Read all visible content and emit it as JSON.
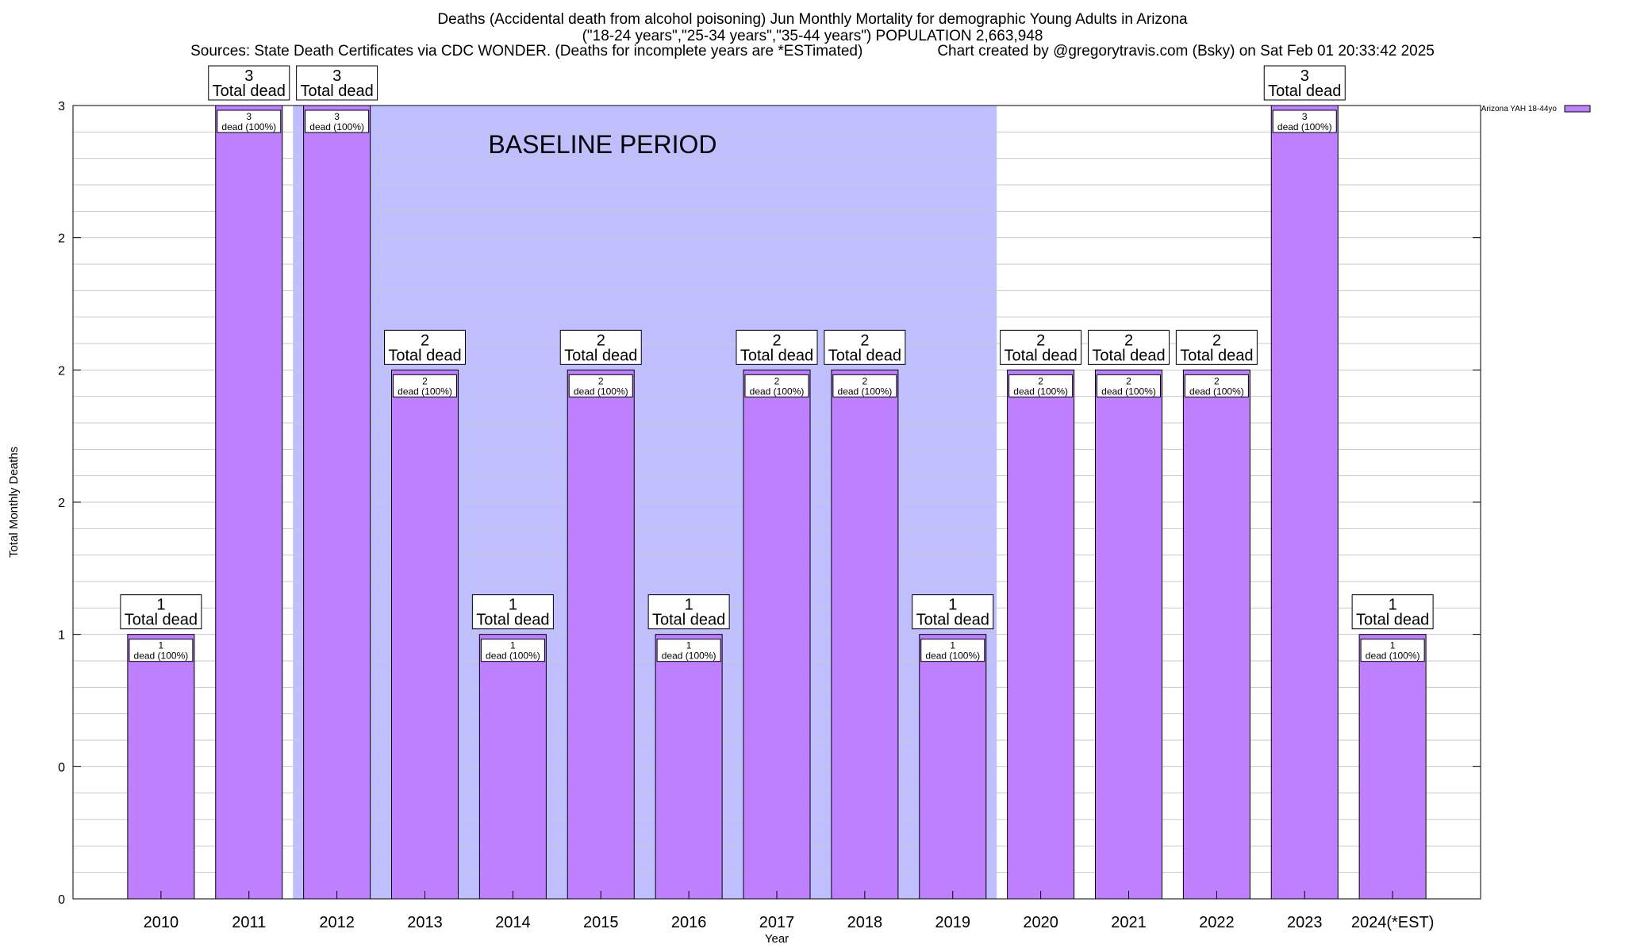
{
  "titles": {
    "line1": "Deaths (Accidental death from alcohol poisoning) Jun Monthly Mortality for demographic Young Adults in Arizona",
    "line2": "(\"18-24 years\",\"25-34 years\",\"35-44 years\") POPULATION 2,663,948",
    "line3_left": "Sources: State Death Certificates via CDC WONDER. (Deaths for incomplete years are *ESTimated)",
    "line3_right": "Chart created by @gregorytravis.com (Bsky) on Sat Feb 01 20:33:42 2025"
  },
  "chart_data": {
    "type": "bar",
    "categories": [
      "2010",
      "2011",
      "2012",
      "2013",
      "2014",
      "2015",
      "2016",
      "2017",
      "2018",
      "2019",
      "2020",
      "2021",
      "2022",
      "2023",
      "2024(*EST)"
    ],
    "series": [
      {
        "name": "Arizona YAH 18-44yo",
        "values": [
          1,
          3,
          3,
          2,
          1,
          2,
          1,
          2,
          2,
          1,
          2,
          2,
          2,
          3,
          1
        ]
      }
    ],
    "ylim": [
      0,
      3
    ],
    "yticks": [
      0,
      0.5,
      1,
      1.5,
      2,
      2.5,
      3
    ],
    "ytick_labels": [
      "0",
      "0",
      "1",
      "2",
      "2",
      "2",
      "3"
    ],
    "xlabel": "Year",
    "ylabel": "Total Monthly Deaths",
    "top_label_suffix": "Total dead",
    "inner_label_suffix": "dead (100%)",
    "baseline_period": {
      "label": "BASELINE PERIOD",
      "from": "2012",
      "to": "2019"
    },
    "legend": {
      "position": "top-right"
    },
    "colors": {
      "bar": "#bf80ff",
      "baseline": "#bfbfff",
      "grid": "#c8c8c8"
    },
    "grid": true
  }
}
